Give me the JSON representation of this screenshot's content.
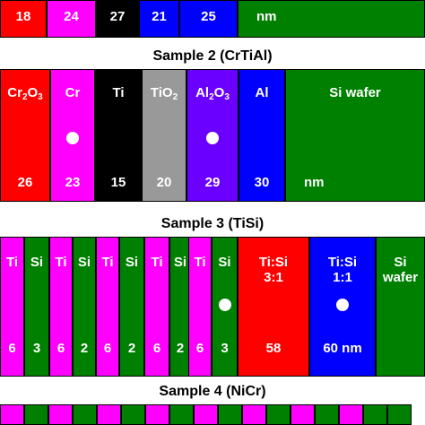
{
  "colors": {
    "red": "#ff0000",
    "magenta": "#ff00ff",
    "black": "#000000",
    "blue": "#0000ff",
    "green": "#008000",
    "gray": "#999999",
    "violet": "#6a00ff",
    "white": "#ffffff"
  },
  "sample1_partial": {
    "layers": [
      {
        "thickness": "18",
        "color": "red"
      },
      {
        "thickness": "24",
        "color": "magenta"
      },
      {
        "thickness": "27",
        "color": "black"
      },
      {
        "thickness": "21",
        "color": "blue"
      },
      {
        "thickness": "25",
        "color": "blue"
      },
      {
        "thickness": "nm",
        "color": "green"
      }
    ]
  },
  "sample2": {
    "title": "Sample 2 (CrTiAl)",
    "layers": [
      {
        "name": "Cr2O3",
        "thickness": "26",
        "color": "red",
        "dot": false
      },
      {
        "name": "Cr",
        "thickness": "23",
        "color": "magenta",
        "dot": true
      },
      {
        "name": "Ti",
        "thickness": "15",
        "color": "black",
        "dot": false
      },
      {
        "name": "TiO2",
        "thickness": "20",
        "color": "gray",
        "dot": false
      },
      {
        "name": "Al2O3",
        "thickness": "29",
        "color": "violet",
        "dot": true
      },
      {
        "name": "Al",
        "thickness": "30",
        "color": "blue",
        "dot": false
      },
      {
        "name": "Si wafer",
        "thickness": "nm",
        "color": "green",
        "dot": false
      }
    ]
  },
  "sample3": {
    "title": "Sample 3 (TiSi)",
    "layers": [
      {
        "name": "Ti",
        "thickness": "6",
        "color": "magenta",
        "dot": false
      },
      {
        "name": "Si",
        "thickness": "3",
        "color": "green",
        "dot": false
      },
      {
        "name": "Ti",
        "thickness": "6",
        "color": "magenta",
        "dot": false
      },
      {
        "name": "Si",
        "thickness": "2",
        "color": "green",
        "dot": false
      },
      {
        "name": "Ti",
        "thickness": "6",
        "color": "magenta",
        "dot": false
      },
      {
        "name": "Si",
        "thickness": "2",
        "color": "green",
        "dot": false
      },
      {
        "name": "Ti",
        "thickness": "6",
        "color": "magenta",
        "dot": false
      },
      {
        "name": "Si",
        "thickness": "2",
        "color": "green",
        "dot": false
      },
      {
        "name": "Ti",
        "thickness": "6",
        "color": "magenta",
        "dot": false
      },
      {
        "name": "Si",
        "thickness": "3",
        "color": "green",
        "dot": true
      },
      {
        "name": "Ti:Si\n3:1",
        "thickness": "58",
        "color": "red",
        "dot": false
      },
      {
        "name": "Ti:Si\n1:1",
        "thickness": "60 nm",
        "color": "blue",
        "dot": true
      },
      {
        "name": "Si\nwafer",
        "thickness": "",
        "color": "green",
        "dot": false
      }
    ]
  },
  "sample4": {
    "title": "Sample 4 (NiCr)",
    "layers": [
      "magenta",
      "green",
      "magenta",
      "green",
      "magenta",
      "green",
      "magenta",
      "green",
      "magenta",
      "green",
      "magenta",
      "green",
      "magenta",
      "green",
      "magenta",
      "green",
      "green"
    ]
  }
}
